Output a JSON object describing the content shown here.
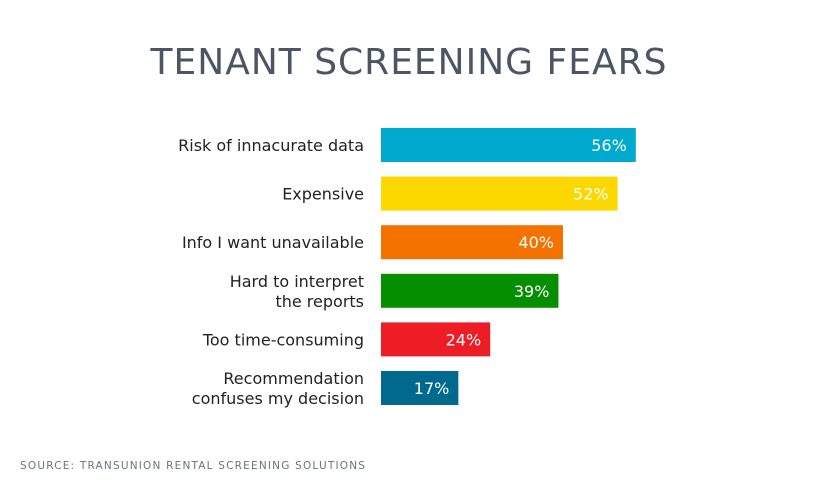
{
  "chart_data": {
    "type": "bar",
    "orientation": "horizontal",
    "title": "TENANT SCREENING FEARS",
    "categories": [
      [
        "Risk of innacurate data"
      ],
      [
        "Expensive"
      ],
      [
        "Info I want unavailable"
      ],
      [
        "Hard to interpret",
        "the reports"
      ],
      [
        "Too time-consuming"
      ],
      [
        "Recommendation",
        "confuses my decision"
      ]
    ],
    "values": [
      56,
      52,
      40,
      39,
      24,
      17
    ],
    "value_labels": [
      "56%",
      "52%",
      "40%",
      "39%",
      "24%",
      "17%"
    ],
    "colors": [
      "#00a9ce",
      "#fdd800",
      "#f47200",
      "#058f00",
      "#ee1c25",
      "#006a8e"
    ],
    "xlim": [
      0,
      100
    ],
    "grid": false,
    "legend": "none"
  },
  "source": "SOURCE: TRANSUNION RENTAL SCREENING SOLUTIONS"
}
